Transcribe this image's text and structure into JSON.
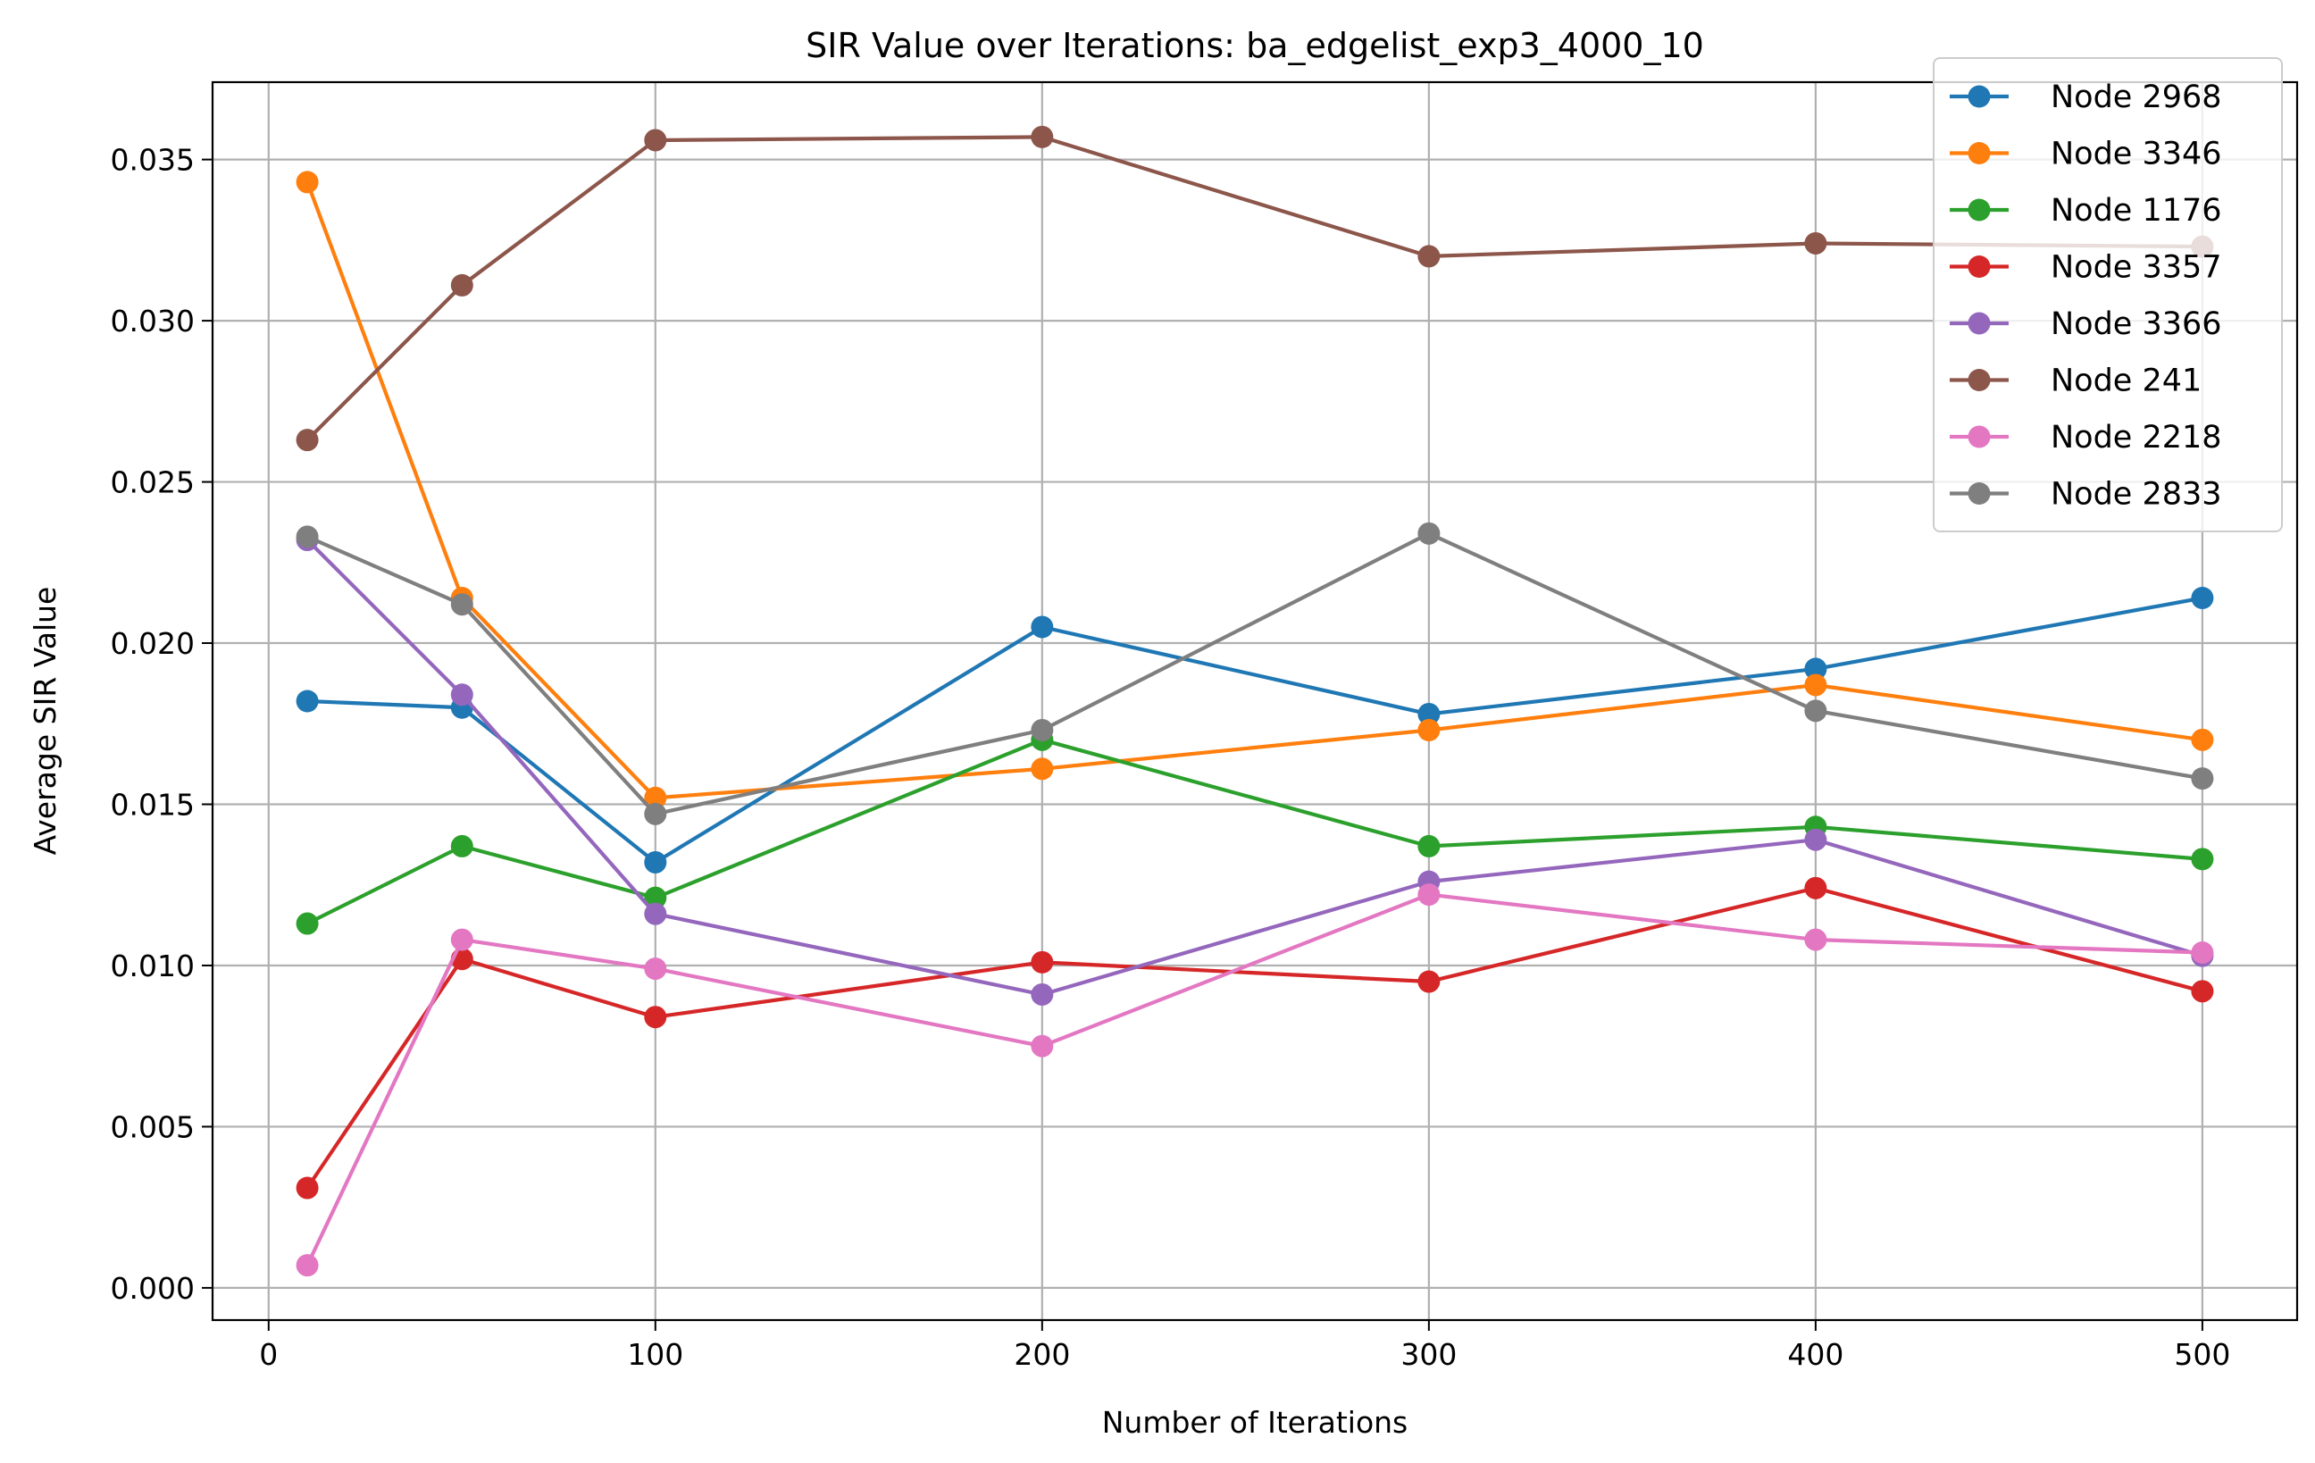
{
  "chart_data": {
    "type": "line",
    "title": "SIR Value over Iterations: ba_edgelist_exp3_4000_10",
    "xlabel": "Number of Iterations",
    "ylabel": "Average SIR Value",
    "xlim": [
      -14.5,
      524.5
    ],
    "ylim": [
      -0.001,
      0.0374
    ],
    "xticks": [
      0,
      100,
      200,
      300,
      400,
      500
    ],
    "xtick_labels": [
      "0",
      "100",
      "200",
      "300",
      "400",
      "500"
    ],
    "yticks": [
      0.0,
      0.005,
      0.01,
      0.015,
      0.02,
      0.025,
      0.03,
      0.035
    ],
    "ytick_labels": [
      "0.000",
      "0.005",
      "0.010",
      "0.015",
      "0.020",
      "0.025",
      "0.030",
      "0.035"
    ],
    "grid": true,
    "legend_position": "top-right",
    "x": [
      10,
      50,
      100,
      200,
      300,
      400,
      500
    ],
    "series": [
      {
        "name": "Node 2968",
        "color": "#1f77b4",
        "values": [
          0.0182,
          0.018,
          0.0132,
          0.0205,
          0.0178,
          0.0192,
          0.0214
        ]
      },
      {
        "name": "Node 3346",
        "color": "#ff7f0e",
        "values": [
          0.0343,
          0.0214,
          0.0152,
          0.0161,
          0.0173,
          0.0187,
          0.017
        ]
      },
      {
        "name": "Node 1176",
        "color": "#2ca02c",
        "values": [
          0.0113,
          0.0137,
          0.0121,
          0.017,
          0.0137,
          0.0143,
          0.0133
        ]
      },
      {
        "name": "Node 3357",
        "color": "#d62728",
        "values": [
          0.0031,
          0.0102,
          0.0084,
          0.0101,
          0.0095,
          0.0124,
          0.0092
        ]
      },
      {
        "name": "Node 3366",
        "color": "#9467bd",
        "values": [
          0.0232,
          0.0184,
          0.0116,
          0.0091,
          0.0126,
          0.0139,
          0.0103
        ]
      },
      {
        "name": "Node 241",
        "color": "#8c564b",
        "values": [
          0.0263,
          0.0311,
          0.0356,
          0.0357,
          0.032,
          0.0324,
          0.0323
        ]
      },
      {
        "name": "Node 2218",
        "color": "#e377c2",
        "values": [
          0.0007,
          0.0108,
          0.0099,
          0.0075,
          0.0122,
          0.0108,
          0.0104
        ]
      },
      {
        "name": "Node 2833",
        "color": "#7f7f7f",
        "values": [
          0.0233,
          0.0212,
          0.0147,
          0.0173,
          0.0234,
          0.0179,
          0.0158
        ]
      }
    ]
  }
}
